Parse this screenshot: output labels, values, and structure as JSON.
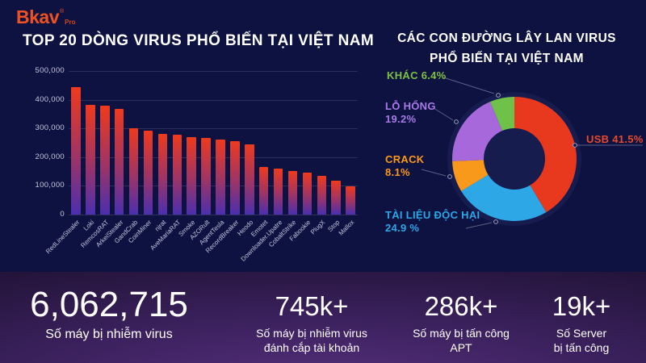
{
  "logo": {
    "brand": "Bkav",
    "registered": "®",
    "edition": "Pro"
  },
  "left_chart_title": "TOP 20 DÒNG VIRUS PHỔ BIẾN TẠI VIỆT NAM",
  "right_chart_title": {
    "line1": "CÁC CON ĐƯỜNG LÂY LAN VIRUS",
    "line2": "PHỔ BIẾN TẠI VIỆT NAM"
  },
  "chart_data": [
    {
      "type": "bar",
      "title": "TOP 20 DÒNG VIRUS PHỔ BIẾN TẠI VIỆT NAM",
      "categories": [
        "RedLineStealer",
        "Loki",
        "RemcosRAT",
        "ArkeiStealer",
        "GandCrab",
        "CoinMiner",
        "njrat",
        "AveMariaRAT",
        "Smoke",
        "AZORult",
        "AgentTesla",
        "RecordBreaker",
        "Heodo",
        "Emotet",
        "Downloader.Upatre",
        "CobaltStrike",
        "Fabookie",
        "PlugX",
        "Stop",
        "Mallox"
      ],
      "values": [
        445000,
        383000,
        380000,
        368000,
        300000,
        293000,
        282000,
        279000,
        271000,
        268000,
        261000,
        257000,
        243000,
        167000,
        161000,
        153000,
        147000,
        136000,
        118000,
        99000
      ],
      "xlabel": "",
      "ylabel": "",
      "ylim": [
        0,
        500000
      ],
      "yticks": [
        {
          "value": 500000,
          "label": "500,000"
        },
        {
          "value": 400000,
          "label": "400,000"
        },
        {
          "value": 300000,
          "label": "300,000"
        },
        {
          "value": 200000,
          "label": "200,000"
        },
        {
          "value": 100000,
          "label": "100,000"
        },
        {
          "value": 0,
          "label": "0"
        }
      ],
      "grid": true,
      "bar_gradient_top": "#ef3a1d",
      "bar_gradient_bottom": "#4b2fae"
    },
    {
      "type": "pie",
      "donut": true,
      "title": "CÁC CON ĐƯỜNG LÂY LAN VIRUS PHỔ BIẾN TẠI VIỆT NAM",
      "start_angle_deg": -90,
      "direction": "clockwise",
      "slices": [
        {
          "name": "USB",
          "pct_label": "41.5%",
          "value": 41.5,
          "color": "#e8391e",
          "label_color": "#e5492e"
        },
        {
          "name": "TÀI LIỆU ĐỘC HẠI",
          "pct_label": "24.9 %",
          "value": 24.9,
          "color": "#2ea7e6",
          "label_color": "#2ea7e6"
        },
        {
          "name": "CRACK",
          "pct_label": "8.1%",
          "value": 8.1,
          "color": "#f9991c",
          "label_color": "#f9991c"
        },
        {
          "name": "LỖ HỔNG",
          "pct_label": "19.2%",
          "value": 19.2,
          "color": "#a668da",
          "label_color": "#a87ae8"
        },
        {
          "name": "KHÁC",
          "pct_label": "6.4%",
          "value": 6.4,
          "color": "#6ec24a",
          "label_color": "#7cc142"
        }
      ]
    }
  ],
  "stats": [
    {
      "value": "6,062,715",
      "label_lines": [
        "Số máy bị nhiễm virus"
      ]
    },
    {
      "value": "745k+",
      "label_lines": [
        "Số máy bị nhiễm virus",
        "đánh cắp tài khoản"
      ]
    },
    {
      "value": "286k+",
      "label_lines": [
        "Số máy bị tấn công",
        "APT"
      ]
    },
    {
      "value": "19k+",
      "label_lines": [
        "Số Server",
        "bị tấn công"
      ]
    }
  ],
  "colors": {
    "background": "#0e1240",
    "axis_text": "#c5c7de",
    "title_text": "#ffffff",
    "logo_orange": "#f05123",
    "footer_gradient_center": "#56307c",
    "footer_gradient_edge": "#221338"
  }
}
